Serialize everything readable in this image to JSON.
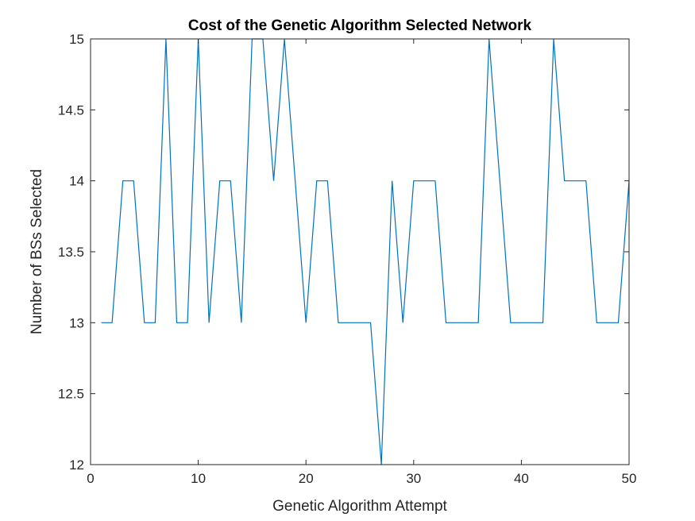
{
  "chart_data": {
    "type": "line",
    "title": "Cost of the Genetic Algorithm Selected Network",
    "xlabel": "Genetic Algorithm Attempt",
    "ylabel": "Number of BSs Selected",
    "xlim": [
      0,
      50
    ],
    "ylim": [
      12,
      15
    ],
    "xticks": [
      0,
      10,
      20,
      30,
      40,
      50
    ],
    "xtick_labels": [
      "0",
      "10",
      "20",
      "30",
      "40",
      "50"
    ],
    "yticks": [
      12,
      12.5,
      13,
      13.5,
      14,
      14.5,
      15
    ],
    "ytick_labels": [
      "12",
      "12.5",
      "13",
      "13.5",
      "14",
      "14.5",
      "15"
    ],
    "grid": false,
    "legend": "none",
    "line_color": "#0072BD",
    "series": [
      {
        "x": [
          1,
          2,
          3,
          4,
          5,
          6,
          7,
          8,
          9,
          10,
          11,
          12,
          13,
          14,
          15,
          16,
          17,
          18,
          19,
          20,
          21,
          22,
          23,
          24,
          25,
          26,
          27,
          28,
          29,
          30,
          31,
          32,
          33,
          34,
          35,
          36,
          37,
          38,
          39,
          40,
          41,
          42,
          43,
          44,
          45,
          46,
          47,
          48,
          49,
          50
        ],
        "values": [
          13,
          13,
          14,
          14,
          13,
          13,
          15,
          13,
          13,
          15,
          13,
          14,
          14,
          13,
          15,
          15,
          14,
          15,
          14,
          13,
          14,
          14,
          13,
          13,
          13,
          13,
          12,
          14,
          13,
          14,
          14,
          14,
          13,
          13,
          13,
          13,
          15,
          14,
          13,
          13,
          13,
          13,
          15,
          14,
          14,
          14,
          13,
          13,
          13,
          14
        ]
      }
    ]
  }
}
